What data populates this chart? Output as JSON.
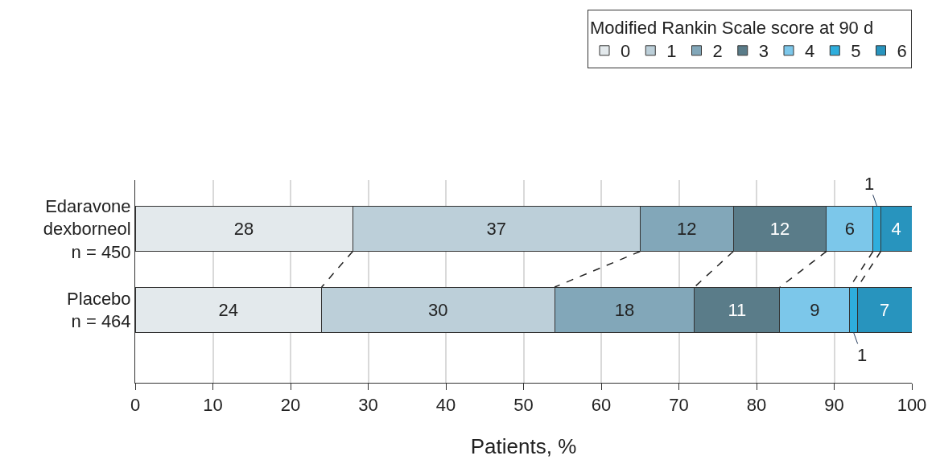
{
  "chart_data": {
    "type": "bar",
    "orientation": "horizontal",
    "stacked": true,
    "legend_title": "Modified Rankin Scale score at 90 d",
    "legend": "top right",
    "xlabel": "Patients, %",
    "categories": [
      "Edaravone\ndexborneol\nn = 450",
      "Placebo\nn = 464"
    ],
    "xlim": [
      0,
      100
    ],
    "xticks": [
      0,
      10,
      20,
      30,
      40,
      50,
      60,
      70,
      80,
      90,
      100
    ],
    "grid": "x",
    "data_labels": true,
    "series": [
      {
        "name": "0",
        "color": "#e3e9ec",
        "values": [
          28,
          24
        ]
      },
      {
        "name": "1",
        "color": "#bccfd9",
        "values": [
          37,
          30
        ]
      },
      {
        "name": "2",
        "color": "#82a7b9",
        "values": [
          12,
          18
        ]
      },
      {
        "name": "3",
        "color": "#5a7c89",
        "values": [
          12,
          11
        ]
      },
      {
        "name": "4",
        "color": "#7cc7ea",
        "values": [
          6,
          9
        ]
      },
      {
        "name": "5",
        "color": "#2eaedd",
        "values": [
          1,
          1
        ]
      },
      {
        "name": "6",
        "color": "#2894be",
        "values": [
          4,
          7
        ]
      }
    ]
  }
}
